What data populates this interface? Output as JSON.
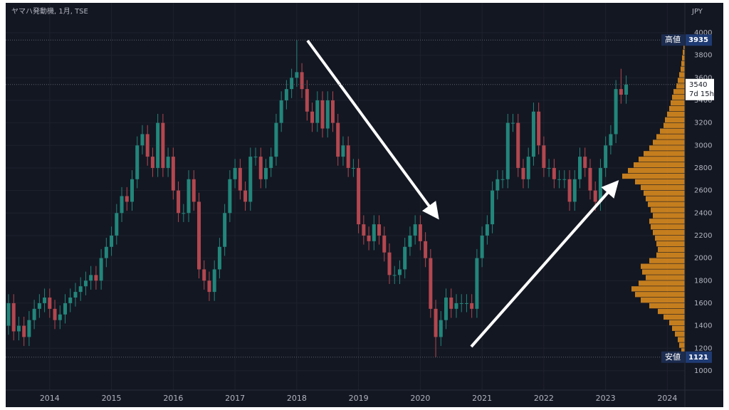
{
  "chart_data": {
    "type": "candlestick",
    "title": "ヤマハ発動機, 1月, TSE",
    "currency": "JPY",
    "high_label": "高値",
    "low_label": "安値",
    "countdown": "7d 15h",
    "up_color": "#22867b",
    "down_color": "#b3474f",
    "open": [
      1400,
      1600,
      1350,
      1400,
      1300,
      1450,
      1550,
      1600,
      1650,
      1550,
      1450,
      1500,
      1600,
      1650,
      1700,
      1750,
      1800,
      1850,
      1800,
      2000,
      2100,
      2200,
      2400,
      2550,
      2500,
      2700,
      3000,
      3100,
      2900,
      2800,
      3200,
      2800,
      2900,
      2600,
      2400,
      2400,
      2700,
      2500,
      1900,
      1800,
      1700,
      1900,
      2100,
      2400,
      2700,
      2800,
      2600,
      2500,
      2900,
      2900,
      2700,
      2800,
      2900,
      3200,
      3400,
      3500,
      3600,
      3650,
      3500,
      3300,
      3200,
      3400,
      3150,
      3400,
      3200,
      2900,
      3000,
      2800,
      2800,
      2300,
      2200,
      2150,
      2300,
      2200,
      2050,
      1850,
      1850,
      1900,
      2100,
      2200,
      2300,
      2150,
      2000,
      1550,
      1300,
      1450,
      1650,
      1550,
      1600,
      1600,
      1600,
      1550,
      2000,
      2200,
      2300,
      2600,
      2700,
      2700,
      3200,
      3200,
      2800,
      2700,
      2900,
      3300,
      3000,
      2800,
      2800,
      2700,
      2700,
      2700,
      2500,
      2700,
      2900,
      2800,
      2600,
      2500,
      2800,
      3000,
      3100,
      3500,
      3450
    ],
    "high": [
      1680,
      1680,
      1480,
      1480,
      1530,
      1630,
      1680,
      1730,
      1730,
      1630,
      1580,
      1680,
      1730,
      1780,
      1830,
      1880,
      1930,
      1930,
      2080,
      2180,
      2280,
      2480,
      2630,
      2630,
      2780,
      3080,
      3180,
      3180,
      2980,
      3280,
      3280,
      2980,
      2980,
      2680,
      2480,
      2780,
      2780,
      2580,
      1980,
      1880,
      1980,
      2180,
      2480,
      2780,
      2880,
      2880,
      2680,
      2980,
      2980,
      2980,
      2880,
      2980,
      3280,
      3480,
      3580,
      3680,
      3935,
      3730,
      3580,
      3380,
      3480,
      3480,
      3480,
      3480,
      3280,
      3080,
      3080,
      2880,
      2880,
      2380,
      2280,
      2380,
      2380,
      2280,
      2130,
      1930,
      1980,
      2180,
      2280,
      2380,
      2380,
      2230,
      2080,
      1630,
      1530,
      1730,
      1730,
      1680,
      1680,
      1680,
      1680,
      2080,
      2280,
      2380,
      2680,
      2780,
      2780,
      3280,
      3280,
      3280,
      2880,
      2980,
      3380,
      3380,
      3080,
      2880,
      2880,
      2780,
      2780,
      2780,
      2780,
      2980,
      2980,
      2880,
      2680,
      2880,
      3080,
      3180,
      3580,
      3680,
      3620
    ],
    "low": [
      1320,
      1270,
      1270,
      1220,
      1220,
      1370,
      1470,
      1520,
      1470,
      1370,
      1370,
      1420,
      1520,
      1570,
      1620,
      1670,
      1720,
      1720,
      1720,
      1920,
      2020,
      2120,
      2320,
      2420,
      2420,
      2620,
      2920,
      2820,
      2720,
      2720,
      2720,
      2720,
      2520,
      2320,
      2320,
      2320,
      2420,
      1820,
      1720,
      1620,
      1620,
      1820,
      2020,
      2320,
      2620,
      2520,
      2420,
      2420,
      2820,
      2620,
      2620,
      2720,
      2820,
      3120,
      3320,
      3420,
      3520,
      3420,
      3220,
      3120,
      3120,
      3070,
      3070,
      3120,
      2820,
      2820,
      2720,
      2720,
      2220,
      2120,
      2070,
      2070,
      2120,
      1970,
      1770,
      1770,
      1770,
      1820,
      2020,
      2120,
      2070,
      1920,
      1470,
      1121,
      1220,
      1370,
      1470,
      1470,
      1520,
      1520,
      1470,
      1470,
      1920,
      2120,
      2220,
      2520,
      2620,
      2620,
      3120,
      2720,
      2620,
      2620,
      2820,
      2920,
      2720,
      2720,
      2620,
      2620,
      2620,
      2420,
      2420,
      2620,
      2720,
      2520,
      2420,
      2420,
      2720,
      2920,
      3020,
      3370,
      3370
    ],
    "close": [
      1600,
      1350,
      1400,
      1300,
      1450,
      1550,
      1600,
      1650,
      1550,
      1450,
      1500,
      1600,
      1650,
      1700,
      1750,
      1800,
      1850,
      1800,
      2000,
      2100,
      2200,
      2400,
      2550,
      2500,
      2700,
      3000,
      3100,
      2900,
      2800,
      3200,
      2800,
      2900,
      2600,
      2400,
      2400,
      2700,
      2500,
      1900,
      1800,
      1700,
      1900,
      2100,
      2400,
      2700,
      2800,
      2600,
      2500,
      2900,
      2900,
      2700,
      2800,
      2900,
      3200,
      3400,
      3500,
      3600,
      3650,
      3500,
      3300,
      3200,
      3400,
      3150,
      3400,
      3200,
      2900,
      3000,
      2800,
      2800,
      2300,
      2200,
      2150,
      2300,
      2200,
      2050,
      1850,
      1850,
      1900,
      2100,
      2200,
      2300,
      2150,
      2000,
      1550,
      1300,
      1450,
      1650,
      1550,
      1600,
      1600,
      1600,
      1550,
      2000,
      2200,
      2300,
      2600,
      2700,
      2700,
      3200,
      3200,
      2800,
      2700,
      2900,
      3300,
      3000,
      2800,
      2800,
      2700,
      2700,
      2700,
      2500,
      2700,
      2900,
      2800,
      2600,
      2500,
      2800,
      3000,
      3100,
      3500,
      3450,
      3540
    ],
    "xlim": [
      -0.55,
      131.4
    ],
    "xticks": [
      {
        "value": 8,
        "label": "2014"
      },
      {
        "value": 20,
        "label": "2015"
      },
      {
        "value": 32,
        "label": "2016"
      },
      {
        "value": 44,
        "label": "2017"
      },
      {
        "value": 56,
        "label": "2018"
      },
      {
        "value": 68,
        "label": "2019"
      },
      {
        "value": 80,
        "label": "2020"
      },
      {
        "value": 92,
        "label": "2021"
      },
      {
        "value": 104,
        "label": "2022"
      },
      {
        "value": 116,
        "label": "2023"
      },
      {
        "value": 128,
        "label": "2024"
      }
    ],
    "ylim": [
      829,
      4265
    ],
    "yticks": [
      1000,
      1200,
      1400,
      1600,
      1800,
      2000,
      2200,
      2400,
      2600,
      2800,
      3000,
      3200,
      3400,
      3600,
      3800,
      4000
    ],
    "grid": true,
    "profile": {
      "color": "#d98a1e",
      "bins": [
        1100,
        1150,
        1200,
        1250,
        1300,
        1350,
        1400,
        1450,
        1500,
        1550,
        1600,
        1650,
        1700,
        1750,
        1800,
        1850,
        1900,
        1950,
        2000,
        2050,
        2100,
        2150,
        2200,
        2250,
        2300,
        2350,
        2400,
        2450,
        2500,
        2550,
        2600,
        2650,
        2700,
        2750,
        2800,
        2850,
        2900,
        2950,
        3000,
        3050,
        3100,
        3150,
        3200,
        3250,
        3300,
        3350,
        3400,
        3450,
        3500,
        3550,
        3600,
        3650,
        3700,
        3750,
        3800,
        3850,
        3900,
        3950
      ],
      "counts": [
        2,
        5,
        8,
        10,
        14,
        18,
        22,
        30,
        38,
        50,
        62,
        70,
        75,
        65,
        55,
        60,
        62,
        50,
        40,
        38,
        40,
        42,
        45,
        48,
        50,
        45,
        48,
        52,
        55,
        58,
        62,
        70,
        88,
        80,
        72,
        65,
        58,
        50,
        45,
        40,
        35,
        30,
        28,
        25,
        22,
        20,
        18,
        16,
        12,
        10,
        8,
        6,
        5,
        4,
        3,
        2,
        1
      ]
    }
  }
}
